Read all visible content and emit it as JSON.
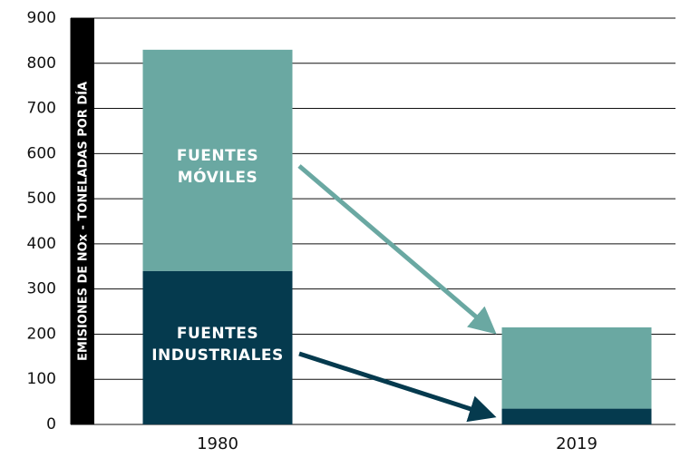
{
  "chart_data": {
    "type": "stacked_bar",
    "categories": [
      "1980",
      "2019"
    ],
    "series": [
      {
        "name": "FUENTES INDUSTRIALES",
        "color": "#053a4e",
        "values": [
          340,
          35
        ]
      },
      {
        "name": "FUENTES MÓVILES",
        "color": "#6aa8a2",
        "values": [
          490,
          180
        ]
      }
    ],
    "y_label": "EMISIONES DE NOx - TONELADAS POR DÍA",
    "ylim": [
      0,
      900
    ],
    "yticks": [
      0,
      100,
      200,
      300,
      400,
      500,
      600,
      700,
      800,
      900
    ],
    "grid": true
  }
}
